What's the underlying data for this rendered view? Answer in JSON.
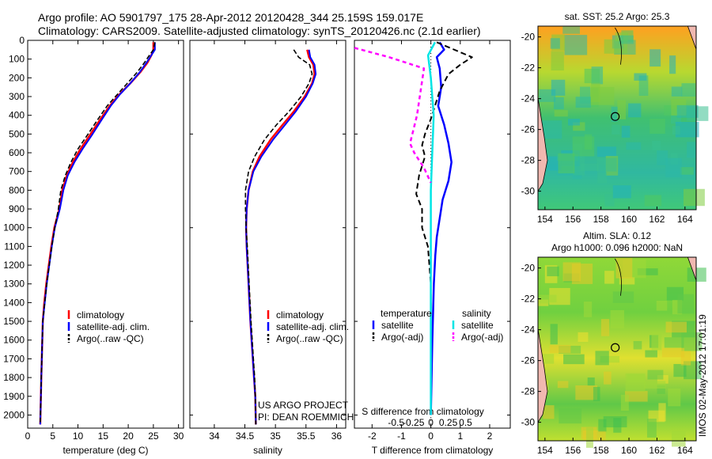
{
  "header": {
    "line1": "Argo profile: AO 5901797_175 28-Apr-2012 20120428_344 25.159S 159.017E",
    "line2": "Climatology: CARS2009. Satellite-adjusted climatology: synTS_20120426.nc (2.1d earlier)"
  },
  "colors": {
    "climatology": "#ff0000",
    "satellite": "#0000ff",
    "argo": "#000000",
    "sal_sat": "#00e5e5",
    "sal_argo": "#ff00ff"
  },
  "chart_data": [
    {
      "type": "line",
      "name": "temperature",
      "xlabel": "temperature (deg C)",
      "xlim": [
        0,
        31
      ],
      "ylim": [
        0,
        2070
      ],
      "xticks": [
        0,
        5,
        10,
        15,
        20,
        25,
        30
      ],
      "yticks": [
        0,
        100,
        200,
        300,
        400,
        500,
        600,
        700,
        800,
        900,
        1000,
        1100,
        1200,
        1300,
        1400,
        1500,
        1600,
        1700,
        1800,
        1900,
        2000
      ],
      "legend": [
        "climatology",
        "satellite-adj. clim.",
        "Argo(..raw -QC)"
      ],
      "series": [
        {
          "name": "climatology",
          "x": [
            25.0,
            25.0,
            24.6,
            23.8,
            22.4,
            20.4,
            18.2,
            16.3,
            14.5,
            12.5,
            10.5,
            9.0,
            7.8,
            6.9,
            6.3,
            5.3,
            4.7,
            4.2,
            3.7,
            3.3,
            3.0,
            2.7,
            2.5
          ],
          "y": [
            10,
            50,
            80,
            120,
            170,
            230,
            290,
            350,
            420,
            500,
            580,
            650,
            720,
            800,
            900,
            1000,
            1100,
            1200,
            1300,
            1400,
            1500,
            1800,
            2050
          ]
        },
        {
          "name": "satellite-adj. clim.",
          "x": [
            25.3,
            25.3,
            24.6,
            23.6,
            22.3,
            20.4,
            18.3,
            16.5,
            14.8,
            12.9,
            10.9,
            9.3,
            8.0,
            7.1,
            6.4,
            5.4,
            4.8,
            4.3,
            3.8,
            3.4,
            3.0,
            2.7,
            2.5
          ],
          "y": [
            10,
            50,
            80,
            120,
            170,
            230,
            290,
            350,
            420,
            500,
            580,
            650,
            720,
            800,
            900,
            1000,
            1100,
            1200,
            1300,
            1400,
            1500,
            1800,
            2050
          ]
        },
        {
          "name": "Argo(..raw -QC)",
          "x": [
            25.3,
            25.0,
            24.2,
            23.2,
            21.8,
            19.8,
            17.8,
            15.8,
            14.0,
            12.0,
            10.0,
            8.6,
            7.5,
            6.6,
            6.1,
            5.4,
            4.8,
            4.3,
            3.8,
            3.4,
            3.0,
            2.7,
            2.5
          ],
          "y": [
            10,
            50,
            80,
            120,
            170,
            230,
            290,
            350,
            420,
            500,
            580,
            650,
            720,
            800,
            900,
            1000,
            1100,
            1200,
            1300,
            1400,
            1500,
            1800,
            2050
          ]
        }
      ]
    },
    {
      "type": "line",
      "name": "salinity",
      "xlabel": "salinity",
      "xlim": [
        33.6,
        36.15
      ],
      "ylim": [
        0,
        2070
      ],
      "xticks": [
        34,
        34.5,
        35,
        35.5,
        36
      ],
      "legend": [
        "climatology",
        "satellite-adj. clim.",
        "Argo(..raw -QC)"
      ],
      "annotation": [
        "US ARGO PROJECT",
        "PI: DEAN ROEMMICH"
      ],
      "series": [
        {
          "name": "climatology",
          "x": [
            35.52,
            35.55,
            35.62,
            35.64,
            35.6,
            35.48,
            35.3,
            35.12,
            34.92,
            34.74,
            34.63,
            34.56,
            34.53,
            34.52,
            34.53,
            34.56,
            34.59,
            34.61,
            34.63,
            34.65,
            34.67,
            34.68
          ],
          "y": [
            50,
            90,
            130,
            180,
            230,
            300,
            380,
            450,
            530,
            620,
            700,
            800,
            900,
            1000,
            1100,
            1300,
            1500,
            1600,
            1700,
            1800,
            1900,
            2050
          ]
        },
        {
          "name": "satellite-adj. clim.",
          "x": [
            35.55,
            35.57,
            35.64,
            35.66,
            35.61,
            35.5,
            35.33,
            35.16,
            34.96,
            34.77,
            34.64,
            34.56,
            34.53,
            34.52,
            34.53,
            34.56,
            34.59,
            34.61,
            34.63,
            34.65,
            34.67,
            34.68
          ],
          "y": [
            50,
            90,
            130,
            180,
            230,
            300,
            380,
            450,
            530,
            620,
            700,
            800,
            900,
            1000,
            1100,
            1300,
            1500,
            1600,
            1700,
            1800,
            1900,
            2050
          ]
        },
        {
          "name": "Argo(..raw -QC)",
          "x": [
            35.3,
            35.38,
            35.56,
            35.6,
            35.55,
            35.42,
            35.22,
            35.02,
            34.82,
            34.66,
            34.56,
            34.51,
            34.51,
            34.52,
            34.54,
            34.57,
            34.6,
            34.62,
            34.64,
            34.66,
            34.67,
            34.68
          ],
          "y": [
            50,
            90,
            130,
            180,
            230,
            300,
            380,
            450,
            530,
            620,
            700,
            800,
            900,
            1000,
            1100,
            1300,
            1500,
            1600,
            1700,
            1800,
            1900,
            2050
          ]
        }
      ]
    },
    {
      "type": "line",
      "name": "differences",
      "xlabel": "T difference from climatology",
      "xlabel_top": "S difference from climatology",
      "xlim": [
        -2.6,
        2.7
      ],
      "ylim": [
        0,
        2070
      ],
      "xticks": [
        -2,
        -1,
        0,
        1,
        2
      ],
      "sticks": [
        -0.5,
        -0.25,
        0,
        0.25,
        0.5
      ],
      "legend_headers": [
        "temperature",
        "salinity"
      ],
      "legend_left": [
        "satellite",
        "Argo(-adj)"
      ],
      "legend_right": [
        "satellite",
        "Argo(-adj)"
      ],
      "series": [
        {
          "name": "temperature satellite",
          "x": [
            0.3,
            0.45,
            0.2,
            0.3,
            0.35,
            0.25,
            0.45,
            0.6,
            0.7,
            0.6,
            0.4,
            0.3,
            0.2,
            0.15,
            0.1,
            0.05,
            0.0
          ],
          "y": [
            10,
            50,
            90,
            150,
            250,
            350,
            450,
            550,
            650,
            750,
            850,
            950,
            1050,
            1150,
            1300,
            1600,
            2000
          ]
        },
        {
          "name": "temperature Argo(-adj)",
          "x": [
            0.2,
            1.4,
            1.0,
            0.6,
            0.3,
            0.0,
            -0.2,
            -0.3,
            -0.2,
            -0.4,
            -0.5,
            -0.3,
            -0.3,
            -0.1,
            0.0,
            0.0
          ],
          "y": [
            10,
            90,
            130,
            180,
            270,
            420,
            500,
            560,
            620,
            720,
            820,
            900,
            1000,
            1100,
            1300,
            2000
          ]
        },
        {
          "name": "salinity satellite",
          "x": [
            0.03,
            -0.02,
            0.0,
            0.02,
            0.0,
            0.0,
            0.0
          ],
          "y": [
            10,
            80,
            200,
            400,
            800,
            1200,
            2000
          ]
        },
        {
          "name": "salinity Argo(-adj)",
          "x": [
            -0.55,
            -0.3,
            -0.05,
            -0.1,
            -0.15,
            -0.12,
            -0.05,
            0.0
          ],
          "y": [
            40,
            90,
            150,
            400,
            550,
            600,
            680,
            760
          ]
        }
      ]
    },
    {
      "type": "heatmap",
      "name": "sst-map",
      "title": "sat. SST: 25.2  Argo: 25.3",
      "xticks": [
        154,
        156,
        158,
        160,
        162,
        164
      ],
      "yticks": [
        -20,
        -22,
        -24,
        -26,
        -28,
        -30
      ],
      "xlim": [
        153.5,
        164.8
      ],
      "ylim": [
        -31.2,
        -19.3
      ],
      "float_position": [
        159.017,
        -25.159
      ]
    },
    {
      "type": "heatmap",
      "name": "sla-map",
      "title": "Altim. SLA: 0.12",
      "subtitle": "Argo h1000: 0.096 h2000: NaN",
      "xticks": [
        154,
        156,
        158,
        160,
        162,
        164
      ],
      "yticks": [
        -20,
        -22,
        -24,
        -26,
        -28,
        -30
      ],
      "xlim": [
        153.5,
        164.8
      ],
      "ylim": [
        -31.2,
        -19.3
      ],
      "float_position": [
        159.017,
        -25.159
      ]
    }
  ],
  "stamp": "IMOS 02-May-2012 17:01:19"
}
